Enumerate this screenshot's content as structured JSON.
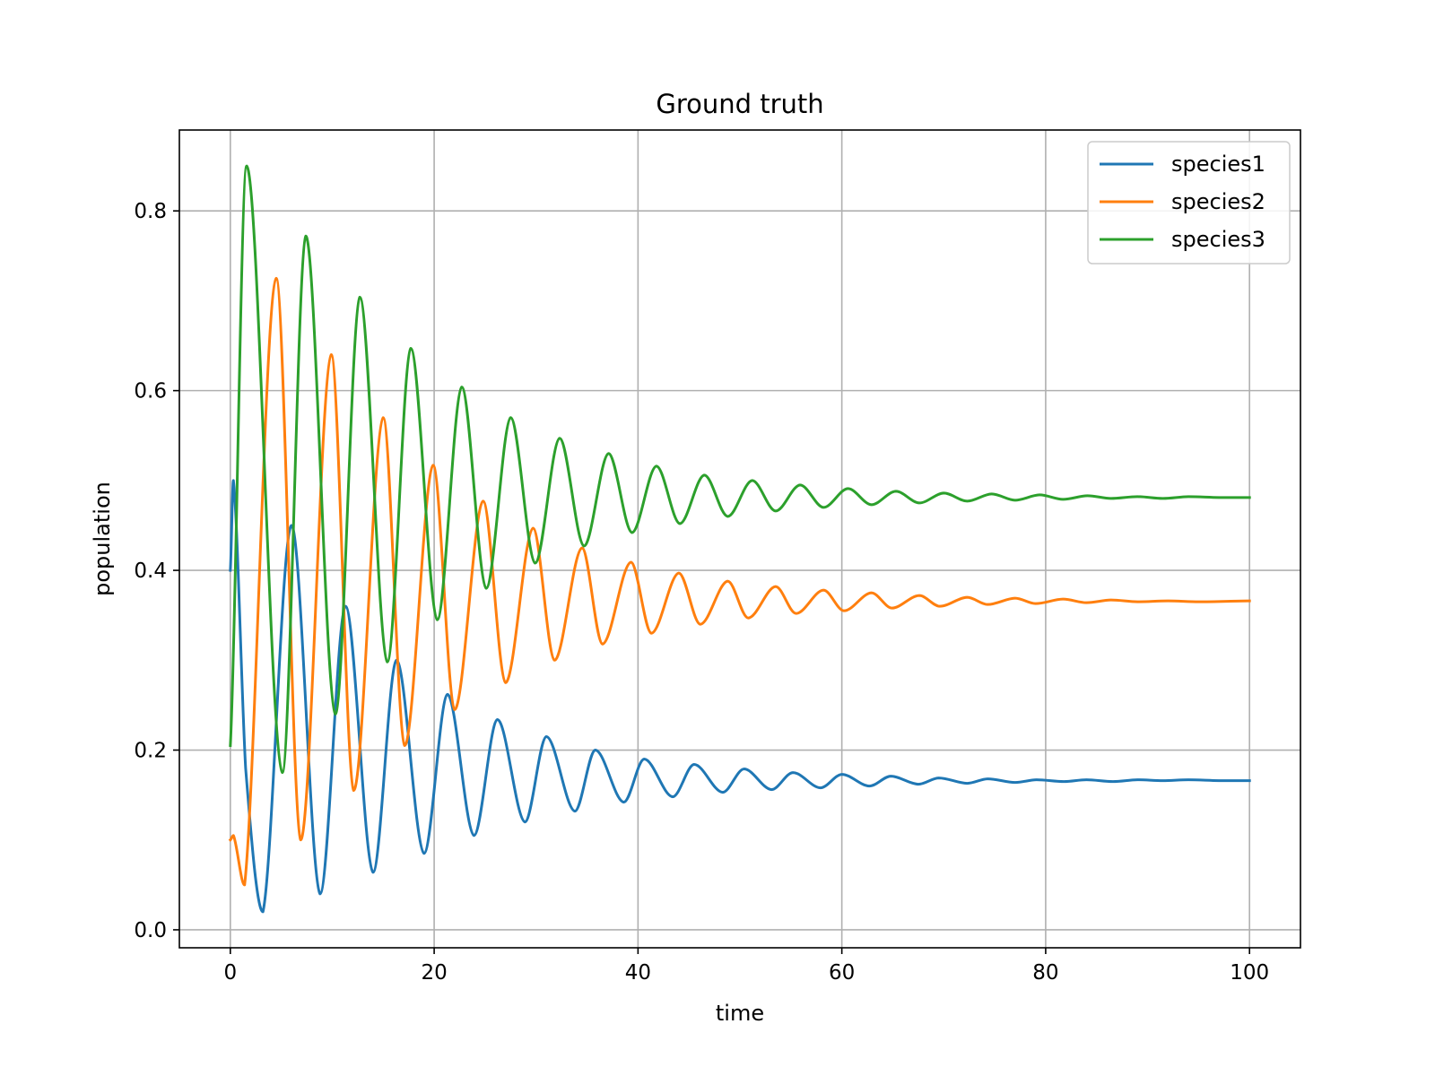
{
  "chart_data": {
    "type": "line",
    "title": "Ground truth",
    "xlabel": "time",
    "ylabel": "population",
    "xlim": [
      -5,
      105
    ],
    "ylim": [
      -0.02,
      0.89
    ],
    "xticks": [
      0,
      20,
      40,
      60,
      80,
      100
    ],
    "yticks": [
      0.0,
      0.2,
      0.4,
      0.6,
      0.8
    ],
    "xtick_labels": [
      "0",
      "20",
      "40",
      "60",
      "80",
      "100"
    ],
    "ytick_labels": [
      "0.0",
      "0.2",
      "0.4",
      "0.6",
      "0.8"
    ],
    "grid": true,
    "legend_position": "top-right",
    "series": [
      {
        "name": "species1",
        "color": "#1f77b4",
        "x": [
          0,
          0.3,
          1.5,
          3.2,
          6.0,
          8.8,
          11.3,
          14.0,
          16.3,
          19.0,
          21.3,
          23.9,
          26.2,
          28.9,
          31.0,
          33.8,
          35.8,
          38.6,
          40.6,
          43.4,
          45.5,
          48.3,
          50.4,
          53.1,
          55.2,
          57.9,
          60.0,
          62.7,
          64.8,
          67.5,
          69.5,
          72.3,
          74.3,
          77.0,
          79.1,
          81.8,
          84.0,
          86.6,
          89.0,
          91.5,
          94.0,
          97.0,
          100
        ],
        "y": [
          0.4,
          0.5,
          0.18,
          0.02,
          0.45,
          0.04,
          0.36,
          0.064,
          0.3,
          0.085,
          0.262,
          0.105,
          0.234,
          0.12,
          0.215,
          0.132,
          0.2,
          0.142,
          0.19,
          0.148,
          0.184,
          0.153,
          0.179,
          0.156,
          0.175,
          0.158,
          0.173,
          0.16,
          0.171,
          0.162,
          0.169,
          0.163,
          0.168,
          0.164,
          0.167,
          0.165,
          0.167,
          0.165,
          0.167,
          0.166,
          0.167,
          0.166,
          0.166
        ]
      },
      {
        "name": "species2",
        "color": "#ff7f0e",
        "x": [
          0,
          0.3,
          1.4,
          4.5,
          6.9,
          9.9,
          12.1,
          15.0,
          17.1,
          19.9,
          22.0,
          24.8,
          27.0,
          29.7,
          31.8,
          34.5,
          36.5,
          39.3,
          41.3,
          44.0,
          46.1,
          48.8,
          50.8,
          53.5,
          55.5,
          58.2,
          60.2,
          62.9,
          64.9,
          67.6,
          69.6,
          72.3,
          74.3,
          77.0,
          79.0,
          81.7,
          84.0,
          86.4,
          89.0,
          92.0,
          95.0,
          100
        ],
        "y": [
          0.1,
          0.105,
          0.05,
          0.725,
          0.1,
          0.64,
          0.155,
          0.57,
          0.205,
          0.517,
          0.245,
          0.477,
          0.275,
          0.447,
          0.3,
          0.425,
          0.318,
          0.409,
          0.33,
          0.397,
          0.34,
          0.388,
          0.347,
          0.382,
          0.352,
          0.378,
          0.355,
          0.375,
          0.358,
          0.372,
          0.36,
          0.37,
          0.362,
          0.369,
          0.363,
          0.368,
          0.364,
          0.367,
          0.365,
          0.366,
          0.365,
          0.366
        ]
      },
      {
        "name": "species3",
        "color": "#2ca02c",
        "x": [
          0,
          1.6,
          5.1,
          7.4,
          10.3,
          12.7,
          15.4,
          17.7,
          20.3,
          22.7,
          25.1,
          27.5,
          29.9,
          32.3,
          34.7,
          37.1,
          39.4,
          41.8,
          44.1,
          46.5,
          48.8,
          51.2,
          53.5,
          55.9,
          58.2,
          60.6,
          62.9,
          65.3,
          67.6,
          70.0,
          72.3,
          74.7,
          77.0,
          79.4,
          81.7,
          84.1,
          86.4,
          89.0,
          91.5,
          94.0,
          97.0,
          100
        ],
        "y": [
          0.205,
          0.85,
          0.175,
          0.772,
          0.24,
          0.704,
          0.298,
          0.647,
          0.345,
          0.604,
          0.38,
          0.57,
          0.408,
          0.547,
          0.427,
          0.53,
          0.442,
          0.516,
          0.452,
          0.506,
          0.46,
          0.5,
          0.466,
          0.495,
          0.47,
          0.491,
          0.473,
          0.488,
          0.475,
          0.486,
          0.477,
          0.485,
          0.478,
          0.484,
          0.479,
          0.483,
          0.48,
          0.482,
          0.48,
          0.482,
          0.481,
          0.481
        ]
      }
    ]
  }
}
